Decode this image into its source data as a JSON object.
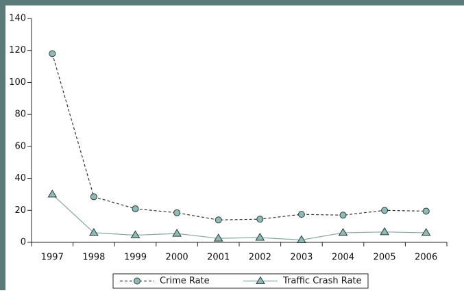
{
  "chart_data": {
    "type": "line",
    "categories": [
      "1997",
      "1998",
      "1999",
      "2000",
      "2001",
      "2002",
      "2003",
      "2004",
      "2005",
      "2006"
    ],
    "series": [
      {
        "name": "Crime Rate",
        "color": "#333333",
        "marker_color": "#8fbab5",
        "marker": "circle",
        "dash": true,
        "values": [
          118,
          28.5,
          21,
          18.5,
          14,
          14.5,
          17.5,
          17,
          20,
          19.5
        ]
      },
      {
        "name": "Traffic Crash Rate",
        "color": "#8aa7a4",
        "marker_color": "#8fbab5",
        "marker": "triangle",
        "dash": false,
        "values": [
          30,
          6,
          4.5,
          5.5,
          2.5,
          3,
          1.5,
          6,
          6.5,
          6
        ]
      }
    ],
    "ylim": [
      0,
      140
    ],
    "yticks": [
      0,
      20,
      40,
      60,
      80,
      100,
      120,
      140
    ],
    "grid": false,
    "legend": "bottom"
  }
}
